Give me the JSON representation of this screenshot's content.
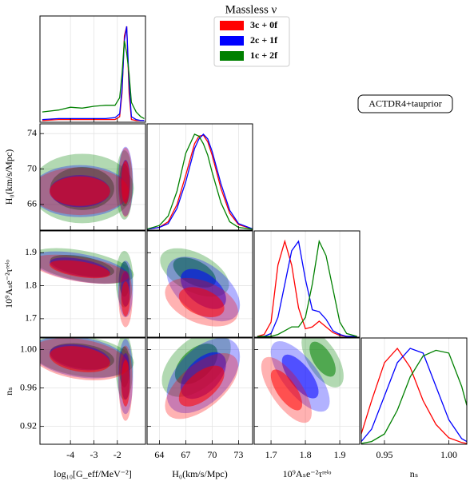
{
  "chart_data": {
    "type": "corner",
    "title": "Massless ν",
    "annotation": "ACTDR4+tauprior",
    "series": [
      {
        "name": "3c + 0f",
        "color": "#ff0000"
      },
      {
        "name": "2c + 1f",
        "color": "#0000ff"
      },
      {
        "name": "1c + 2f",
        "color": "#008000"
      }
    ],
    "parameters": [
      {
        "label": "log₁₀[G_eff/MeV⁻²]",
        "xlim": [
          -5.3,
          -0.8
        ],
        "xticks": [
          -4,
          -3,
          -2
        ],
        "x": [
          -5.2,
          -4.5,
          -4,
          -3.5,
          -3,
          -2.5,
          -2.1,
          -1.9,
          -1.8,
          -1.7,
          -1.6,
          -1.5,
          -1.4,
          -1.2,
          -1.0,
          -0.85
        ],
        "values": [
          [
            0.01,
            0.02,
            0.02,
            0.02,
            0.02,
            0.02,
            0.02,
            0.05,
            0.3,
            0.9,
            1.0,
            0.3,
            0.02,
            0.01,
            0.01,
            0.01
          ],
          [
            0.02,
            0.03,
            0.03,
            0.03,
            0.03,
            0.03,
            0.04,
            0.08,
            0.35,
            0.85,
            1.0,
            0.4,
            0.05,
            0.02,
            0.01,
            0.01
          ],
          [
            0.1,
            0.12,
            0.15,
            0.14,
            0.16,
            0.17,
            0.17,
            0.25,
            0.5,
            0.85,
            0.72,
            0.5,
            0.2,
            0.1,
            0.05,
            0.03
          ]
        ]
      },
      {
        "label": "H₀(km/s/Mpc)",
        "xlim": [
          62.6,
          74.6
        ],
        "xticks": [
          64,
          67,
          70,
          73
        ],
        "ylim": [
          63.1,
          75.1
        ],
        "yticks": [
          66,
          70,
          74
        ],
        "x": [
          62.6,
          64,
          65,
          66,
          67,
          68,
          68.5,
          69,
          69.5,
          70,
          71,
          72,
          73,
          74.6
        ],
        "values": [
          [
            0.001,
            0.02,
            0.08,
            0.26,
            0.57,
            0.9,
            0.98,
            0.99,
            0.92,
            0.78,
            0.43,
            0.17,
            0.05,
            0.003
          ],
          [
            0.001,
            0.02,
            0.06,
            0.22,
            0.5,
            0.85,
            0.95,
            1.0,
            0.95,
            0.82,
            0.48,
            0.2,
            0.06,
            0.005
          ],
          [
            0.002,
            0.04,
            0.14,
            0.4,
            0.8,
            1.0,
            0.98,
            0.9,
            0.78,
            0.6,
            0.28,
            0.08,
            0.02,
            0.002
          ]
        ]
      },
      {
        "label": "10⁹Aₛe⁻²τʳᵉⁱᵒ",
        "xlim": [
          1.651,
          1.958
        ],
        "xticks": [
          1.7,
          1.8,
          1.9
        ],
        "ylim": [
          1.644,
          1.966
        ],
        "yticks": [
          1.7,
          1.8,
          1.9
        ],
        "x": [
          1.66,
          1.68,
          1.7,
          1.72,
          1.74,
          1.76,
          1.78,
          1.8,
          1.82,
          1.84,
          1.86,
          1.88,
          1.9,
          1.92,
          1.95
        ],
        "values": [
          [
            0,
            0.02,
            0.15,
            0.75,
            1.0,
            0.75,
            0.3,
            0.08,
            0.1,
            0.16,
            0.1,
            0.04,
            0.01,
            0,
            0
          ],
          [
            0,
            0,
            0.03,
            0.2,
            0.55,
            0.9,
            1.0,
            0.6,
            0.28,
            0.26,
            0.18,
            0.06,
            0.02,
            0,
            0
          ],
          [
            0,
            0,
            0,
            0.02,
            0.06,
            0.1,
            0.1,
            0.2,
            0.55,
            1.0,
            0.85,
            0.5,
            0.15,
            0.03,
            0
          ]
        ]
      },
      {
        "label": "nₛ",
        "xlim": [
          0.932,
          1.014
        ],
        "xticks": [
          0.95,
          {
            "value": 1.0,
            "label": "1.00"
          }
        ],
        "ylim": [
          0.9014,
          1.0121
        ],
        "yticks": [
          0.92,
          0.96,
          {
            "value": 1.0,
            "label": "1.00"
          }
        ],
        "x": [
          0.932,
          0.94,
          0.95,
          0.96,
          0.97,
          0.98,
          0.99,
          1.0,
          1.01,
          1.014
        ],
        "values": [
          [
            0.1,
            0.45,
            0.85,
            1.0,
            0.8,
            0.45,
            0.2,
            0.06,
            0.01,
            0
          ],
          [
            0.02,
            0.15,
            0.5,
            0.85,
            1.0,
            0.95,
            0.6,
            0.25,
            0.05,
            0.02
          ],
          [
            0,
            0.02,
            0.1,
            0.35,
            0.7,
            0.92,
            0.98,
            0.95,
            0.6,
            0.4
          ]
        ]
      }
    ],
    "contours": [
      {
        "xparam": 0,
        "yparam": 1,
        "regions": [
          [
            {
              "x": -1.65,
              "sx": 0.12,
              "y": 68.5,
              "sy": 1.6,
              "rho": 0
            },
            {
              "x": -3.6,
              "sx": 0.85,
              "y": 67.5,
              "sy": 1.1,
              "rho": 0
            }
          ],
          [
            {
              "x": -1.65,
              "sx": 0.13,
              "y": 68.6,
              "sy": 1.6,
              "rho": 0
            },
            {
              "x": -3.6,
              "sx": 0.85,
              "y": 67.5,
              "sy": 1.2,
              "rho": 0
            }
          ],
          [
            {
              "x": -1.7,
              "sx": 0.15,
              "y": 68.2,
              "sy": 1.6,
              "rho": 0
            },
            {
              "x": -3.5,
              "sx": 0.9,
              "y": 67.8,
              "sy": 1.6,
              "rho": 0
            }
          ]
        ]
      },
      {
        "xparam": 0,
        "yparam": 2,
        "regions": [
          [
            {
              "x": -1.65,
              "sx": 0.12,
              "y": 1.76,
              "sy": 0.035,
              "rho": 0
            },
            {
              "x": -3.6,
              "sx": 0.85,
              "y": 1.85,
              "sy": 0.018,
              "rho": -0.5
            }
          ],
          [
            {
              "x": -1.65,
              "sx": 0.13,
              "y": 1.79,
              "sy": 0.035,
              "rho": 0
            },
            {
              "x": -3.6,
              "sx": 0.85,
              "y": 1.855,
              "sy": 0.02,
              "rho": -0.5
            }
          ],
          [
            {
              "x": -1.7,
              "sx": 0.15,
              "y": 1.82,
              "sy": 0.035,
              "rho": 0
            },
            {
              "x": -3.5,
              "sx": 0.9,
              "y": 1.86,
              "sy": 0.022,
              "rho": -0.5
            }
          ]
        ]
      },
      {
        "xparam": 0,
        "yparam": 3,
        "regions": [
          [
            {
              "x": -1.65,
              "sx": 0.12,
              "y": 0.965,
              "sy": 0.016,
              "rho": 0
            },
            {
              "x": -3.6,
              "sx": 0.85,
              "y": 0.99,
              "sy": 0.009,
              "rho": -0.3
            }
          ],
          [
            {
              "x": -1.65,
              "sx": 0.13,
              "y": 0.972,
              "sy": 0.016,
              "rho": 0
            },
            {
              "x": -3.6,
              "sx": 0.85,
              "y": 0.992,
              "sy": 0.009,
              "rho": -0.3
            }
          ],
          [
            {
              "x": -1.7,
              "sx": 0.15,
              "y": 0.982,
              "sy": 0.014,
              "rho": 0
            },
            {
              "x": -3.5,
              "sx": 0.9,
              "y": 0.993,
              "sy": 0.009,
              "rho": -0.3
            }
          ]
        ]
      },
      {
        "xparam": 1,
        "yparam": 2,
        "regions": [
          [
            {
              "x": 68.8,
              "sx": 1.7,
              "y": 1.75,
              "sy": 0.03,
              "rho": -0.4
            }
          ],
          [
            {
              "x": 69,
              "sx": 1.7,
              "y": 1.79,
              "sy": 0.04,
              "rho": -0.5
            }
          ],
          [
            {
              "x": 68,
              "sx": 1.6,
              "y": 1.84,
              "sy": 0.03,
              "rho": -0.5
            }
          ]
        ]
      },
      {
        "xparam": 1,
        "yparam": 3,
        "regions": [
          [
            {
              "x": 68.8,
              "sx": 1.7,
              "y": 0.962,
              "sy": 0.014,
              "rho": 0.6
            }
          ],
          [
            {
              "x": 69,
              "sx": 1.7,
              "y": 0.973,
              "sy": 0.016,
              "rho": 0.5
            }
          ],
          [
            {
              "x": 68.2,
              "sx": 1.6,
              "y": 0.985,
              "sy": 0.014,
              "rho": 0.5
            }
          ]
        ]
      },
      {
        "xparam": 2,
        "yparam": 3,
        "regions": [
          [
            {
              "x": 1.745,
              "sx": 0.03,
              "y": 0.958,
              "sy": 0.014,
              "rho": -0.7
            }
          ],
          [
            {
              "x": 1.785,
              "sx": 0.035,
              "y": 0.972,
              "sy": 0.015,
              "rho": -0.7
            }
          ],
          [
            {
              "x": 1.85,
              "sx": 0.025,
              "y": 0.99,
              "sy": 0.012,
              "rho": -0.6
            }
          ]
        ]
      }
    ]
  }
}
